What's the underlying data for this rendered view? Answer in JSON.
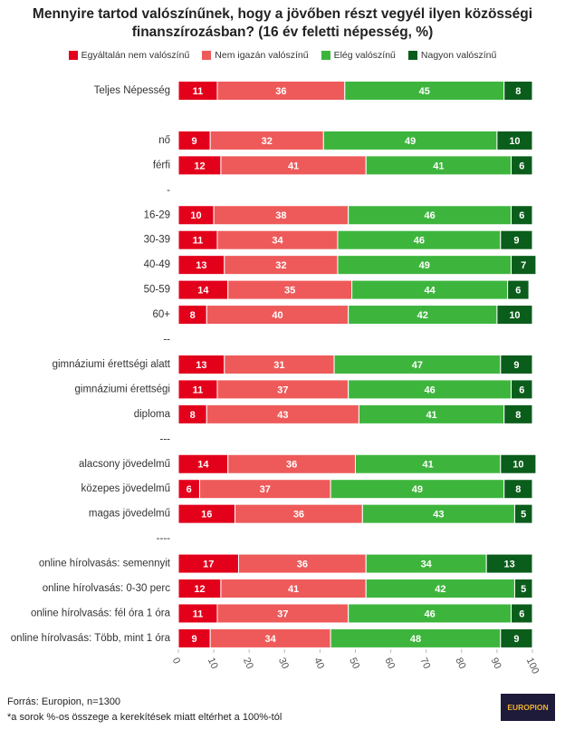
{
  "chart_data": {
    "type": "stacked_barh",
    "title": "Mennyire tartod valószínűnek, hogy a jövőben részt vegyél ilyen közösségi finanszírozásban? (16 év feletti népesség, %)",
    "categories": [
      "Teljes Népesség",
      null,
      "nő",
      "férfi",
      "-",
      "16-29",
      "30-39",
      "40-49",
      "50-59",
      "60+",
      "--",
      "gimnáziumi érettségi alatt",
      "gimnáziumi  érettségi",
      "diploma",
      "---",
      "alacsony jövedelmű",
      "közepes jövedelmű",
      "magas jövedelmű",
      "----",
      "online hírolvasás: semennyit",
      "online hírolvasás: 0-30 perc",
      "online hírolvasás: fél óra 1 óra",
      "online hírolvasás: Több, mint 1 óra"
    ],
    "series": [
      {
        "name": "Egyáltalán nem valószínű",
        "color": "#e3001b",
        "values": [
          11,
          null,
          9,
          12,
          null,
          10,
          11,
          13,
          14,
          8,
          null,
          13,
          11,
          8,
          null,
          14,
          6,
          16,
          null,
          17,
          12,
          11,
          9
        ]
      },
      {
        "name": "Nem igazán valószínű",
        "color": "#ee5a5a",
        "values": [
          36,
          null,
          32,
          41,
          null,
          38,
          34,
          32,
          35,
          40,
          null,
          31,
          37,
          43,
          null,
          36,
          37,
          36,
          null,
          36,
          41,
          37,
          34
        ]
      },
      {
        "name": "Elég valószínű",
        "color": "#3db53d",
        "values": [
          45,
          null,
          49,
          41,
          null,
          46,
          46,
          49,
          44,
          42,
          null,
          47,
          46,
          41,
          null,
          41,
          49,
          43,
          null,
          34,
          42,
          46,
          48
        ]
      },
      {
        "name": "Nagyon valószínű",
        "color": "#0b5d1b",
        "values": [
          8,
          null,
          10,
          6,
          null,
          6,
          9,
          7,
          6,
          10,
          null,
          9,
          6,
          8,
          null,
          10,
          8,
          5,
          null,
          13,
          5,
          6,
          9
        ]
      }
    ],
    "xlim": [
      0,
      100
    ],
    "xticks": [
      0,
      10,
      20,
      30,
      40,
      50,
      60,
      70,
      80,
      90,
      100
    ],
    "grid": false,
    "source": "Forrás: Europion, n=1300",
    "note": "*a sorok %-os összege a kerekítések miatt eltérhet a 100%-tól",
    "logo": "EUROPION"
  }
}
